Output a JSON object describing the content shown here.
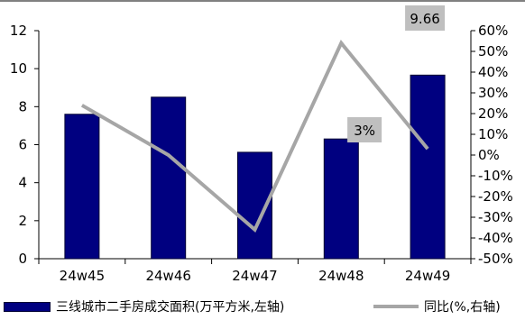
{
  "chart_data": {
    "type": "bar",
    "categories": [
      "24w45",
      "24w46",
      "24w47",
      "24w48",
      "24w49"
    ],
    "series": [
      {
        "name": "三线城市二手房成交面积(万平方米,左轴)",
        "type": "bar",
        "axis": "left",
        "color": "#000080",
        "values": [
          7.6,
          8.5,
          5.6,
          6.3,
          9.66
        ]
      },
      {
        "name": "同比(%,右轴)",
        "type": "line",
        "axis": "right",
        "color": "#a6a6a6",
        "values": [
          24,
          0,
          -36,
          54,
          3
        ]
      }
    ],
    "left_axis": {
      "min": 0,
      "max": 12,
      "step": 2,
      "ticks": [
        "0",
        "2",
        "4",
        "6",
        "8",
        "10",
        "12"
      ]
    },
    "right_axis": {
      "min": -50,
      "max": 60,
      "step": 10,
      "ticks": [
        "-50%",
        "-40%",
        "-30%",
        "-20%",
        "-10%",
        "0%",
        "10%",
        "20%",
        "30%",
        "40%",
        "50%",
        "60%"
      ]
    },
    "annotations": [
      {
        "series": "bar",
        "index": 4,
        "label": "9.66"
      },
      {
        "series": "line",
        "index": 4,
        "label": "3%"
      }
    ],
    "grid": false,
    "legend_position": "bottom"
  }
}
